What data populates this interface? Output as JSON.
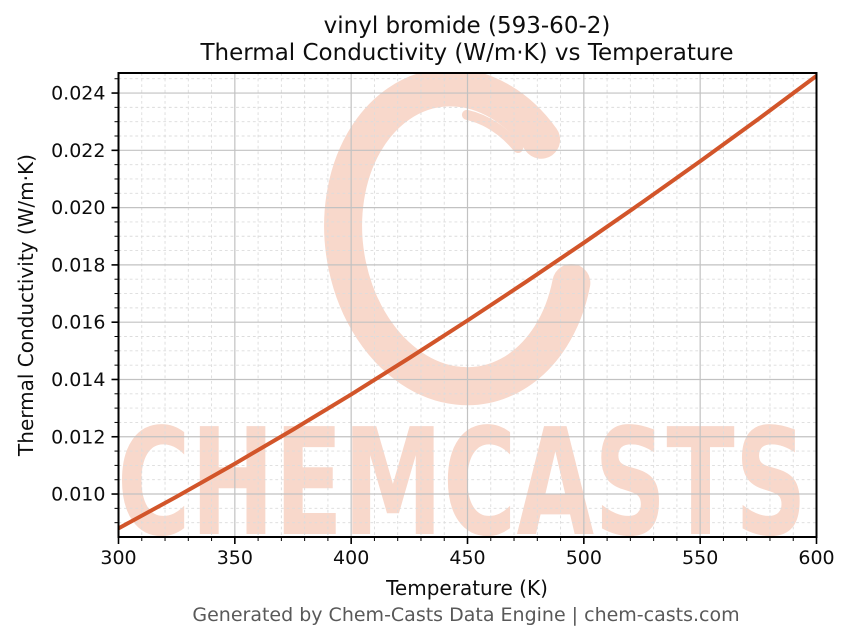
{
  "title": {
    "line1": "vinyl bromide (593-60-2)",
    "line2": "Thermal Conductivity (W/m·K) vs Temperature"
  },
  "watermark": {
    "text": "CHEMCASTS",
    "logo": "brush-c-swirl",
    "color": "#f8d8cb"
  },
  "footer": {
    "text": "Generated by Chem-Casts Data Engine | chem-casts.com",
    "color": "#595959"
  },
  "chart_data": {
    "type": "line",
    "title": "vinyl bromide (593-60-2)",
    "subtitle": "Thermal Conductivity (W/m·K) vs Temperature",
    "xlabel": "Temperature (K)",
    "ylabel": "Thermal Conductivity (W/m·K)",
    "xlim": [
      300,
      600
    ],
    "ylim": [
      0.0085,
      0.0247
    ],
    "x_major_ticks": [
      300,
      350,
      400,
      450,
      500,
      550,
      600
    ],
    "x_tick_labels": [
      "300",
      "350",
      "400",
      "450",
      "500",
      "550",
      "600"
    ],
    "y_major_ticks": [
      0.01,
      0.012,
      0.014,
      0.016,
      0.018,
      0.02,
      0.022,
      0.024
    ],
    "y_tick_labels": [
      "0.010",
      "0.012",
      "0.014",
      "0.016",
      "0.018",
      "0.020",
      "0.022",
      "0.024"
    ],
    "x_minor_step": 10,
    "y_minor_step": 0.0005,
    "grid": {
      "major": true,
      "minor": true,
      "minor_style": "dashed"
    },
    "legend": "none",
    "series": [
      {
        "name": "Thermal Conductivity",
        "color": "#d2552a",
        "x": [
          300,
          325,
          350,
          375,
          400,
          425,
          450,
          475,
          500,
          525,
          550,
          575,
          600
        ],
        "y": [
          0.0088,
          0.00991,
          0.01106,
          0.01225,
          0.01348,
          0.01475,
          0.01606,
          0.0174,
          0.01877,
          0.02018,
          0.02162,
          0.02309,
          0.0246
        ]
      }
    ],
    "colors": {
      "line": "#d2552a",
      "major_grid": "#c2c2c2",
      "minor_grid": "#dcdcdc",
      "spine": "#000000",
      "watermark": "#f8d8cb"
    }
  }
}
